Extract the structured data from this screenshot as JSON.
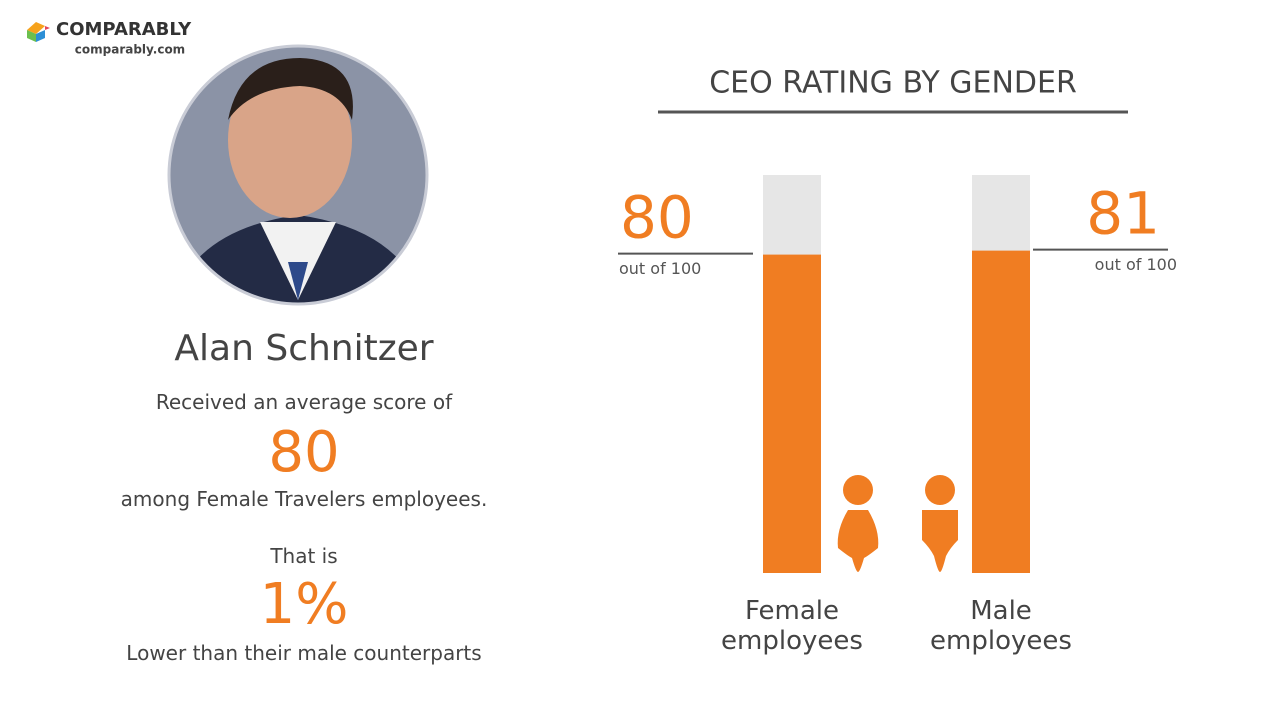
{
  "brand": {
    "name": "COMPARABLY",
    "url": "comparably.com"
  },
  "person": {
    "name": "Alan Schnitzer",
    "intro": "Received an average score of",
    "score": "80",
    "group": "among Female Travelers employees.",
    "lead": "That is",
    "difference": "1%",
    "comparison": "Lower than their male counterparts"
  },
  "chart_data": {
    "type": "bar",
    "title": "CEO RATING BY GENDER",
    "categories": [
      "Female employees",
      "Male employees"
    ],
    "values": [
      80,
      81
    ],
    "value_notes": [
      "out of 100",
      "out of 100"
    ],
    "ylim": [
      0,
      100
    ],
    "color": "#f07d22",
    "track_color": "#e6e6e6"
  }
}
